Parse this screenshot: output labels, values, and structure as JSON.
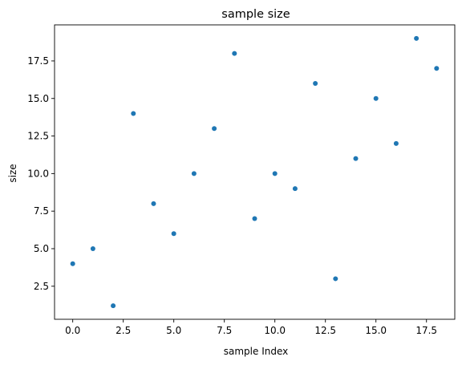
{
  "chart_data": {
    "type": "scatter",
    "title": "sample size",
    "xlabel": "sample Index",
    "ylabel": "size",
    "xlim": [
      -0.9,
      18.9
    ],
    "ylim": [
      0.3,
      19.9
    ],
    "xticks": [
      0.0,
      2.5,
      5.0,
      7.5,
      10.0,
      12.5,
      15.0,
      17.5
    ],
    "xtick_labels": [
      "0.0",
      "2.5",
      "5.0",
      "7.5",
      "10.0",
      "12.5",
      "15.0",
      "17.5"
    ],
    "yticks": [
      2.5,
      5.0,
      7.5,
      10.0,
      12.5,
      15.0,
      17.5
    ],
    "ytick_labels": [
      "2.5",
      "5.0",
      "7.5",
      "10.0",
      "12.5",
      "15.0",
      "17.5"
    ],
    "grid": false,
    "marker_color": "#1f77b4",
    "x": [
      0,
      1,
      2,
      3,
      4,
      5,
      6,
      7,
      8,
      9,
      10,
      11,
      12,
      13,
      14,
      15,
      16,
      17,
      18
    ],
    "y": [
      4,
      5,
      1.2,
      14,
      8,
      6,
      10,
      13,
      18,
      7,
      10,
      9,
      16,
      3,
      11,
      15,
      12,
      19,
      17
    ]
  }
}
